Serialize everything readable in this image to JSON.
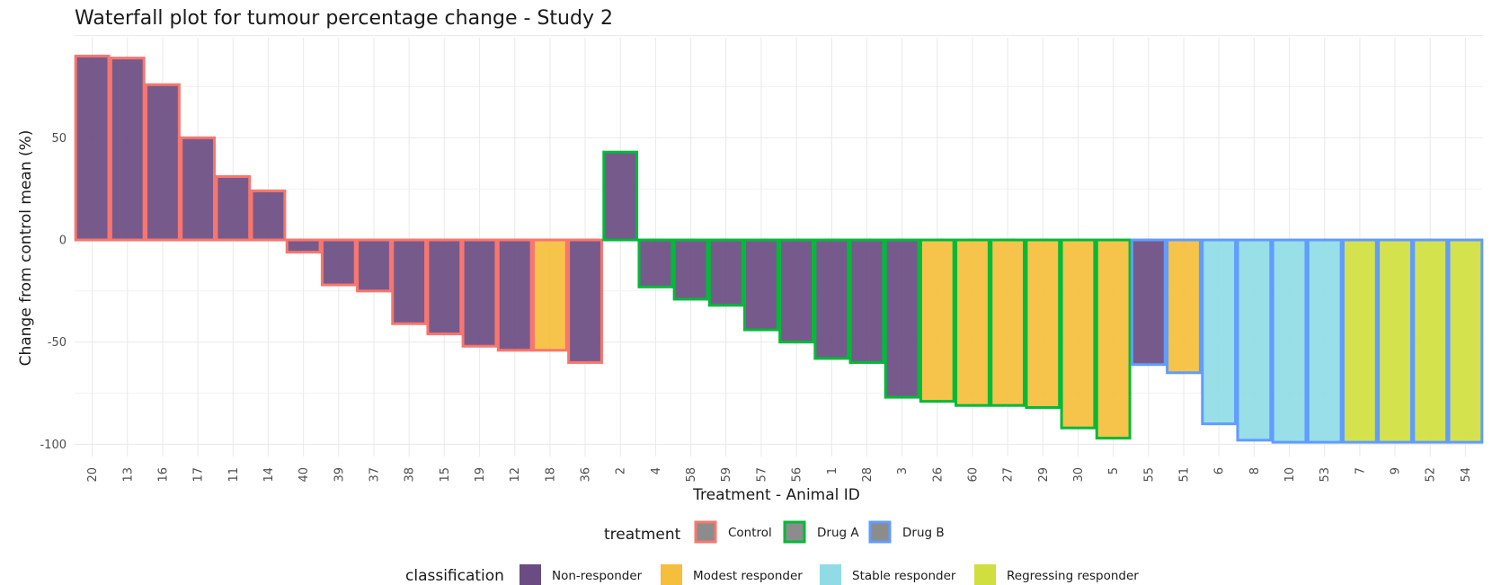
{
  "chart_data": {
    "type": "bar",
    "title": "Waterfall plot for tumour percentage change - Study 2",
    "xlabel": "Treatment - Animal ID",
    "ylabel": "Change from control mean (%)",
    "ylim": [
      -110,
      100
    ],
    "yticks": [
      50,
      0,
      -50,
      -100
    ],
    "grid": "on",
    "legend_placement": "bottom",
    "categories": [
      "20",
      "13",
      "16",
      "17",
      "11",
      "14",
      "40",
      "39",
      "37",
      "38",
      "15",
      "19",
      "12",
      "18",
      "36",
      "2",
      "4",
      "58",
      "59",
      "57",
      "56",
      "1",
      "28",
      "3",
      "26",
      "60",
      "27",
      "29",
      "30",
      "5",
      "55",
      "51",
      "6",
      "8",
      "10",
      "53",
      "7",
      "9",
      "52",
      "54"
    ],
    "values": [
      90,
      89,
      76,
      50,
      31,
      24,
      -6,
      -22,
      -25,
      -41,
      -46,
      -52,
      -54,
      -54,
      -60,
      43,
      -23,
      -29,
      -32,
      -44,
      -50,
      -58,
      -60,
      -77,
      -79,
      -81,
      -81,
      -82,
      -92,
      -97,
      -61,
      -65,
      -90,
      -98,
      -99,
      -99,
      -99,
      -99,
      -99,
      -99
    ],
    "treatment": [
      "Control",
      "Control",
      "Control",
      "Control",
      "Control",
      "Control",
      "Control",
      "Control",
      "Control",
      "Control",
      "Control",
      "Control",
      "Control",
      "Control",
      "Control",
      "Drug A",
      "Drug A",
      "Drug A",
      "Drug A",
      "Drug A",
      "Drug A",
      "Drug A",
      "Drug A",
      "Drug A",
      "Drug A",
      "Drug A",
      "Drug A",
      "Drug A",
      "Drug A",
      "Drug A",
      "Drug B",
      "Drug B",
      "Drug B",
      "Drug B",
      "Drug B",
      "Drug B",
      "Drug B",
      "Drug B",
      "Drug B",
      "Drug B"
    ],
    "classification": [
      "Non-responder",
      "Non-responder",
      "Non-responder",
      "Non-responder",
      "Non-responder",
      "Non-responder",
      "Non-responder",
      "Non-responder",
      "Non-responder",
      "Non-responder",
      "Non-responder",
      "Non-responder",
      "Non-responder",
      "Modest responder",
      "Non-responder",
      "Non-responder",
      "Non-responder",
      "Non-responder",
      "Non-responder",
      "Non-responder",
      "Non-responder",
      "Non-responder",
      "Non-responder",
      "Non-responder",
      "Modest responder",
      "Modest responder",
      "Modest responder",
      "Modest responder",
      "Modest responder",
      "Modest responder",
      "Non-responder",
      "Modest responder",
      "Stable responder",
      "Stable responder",
      "Stable responder",
      "Stable responder",
      "Regressing responder",
      "Regressing responder",
      "Regressing responder",
      "Regressing responder"
    ],
    "legend": {
      "treatment_title": "treatment",
      "treatment": [
        {
          "name": "Control",
          "color": "#f8766d"
        },
        {
          "name": "Drug A",
          "color": "#00ba38"
        },
        {
          "name": "Drug B",
          "color": "#619cff"
        }
      ],
      "classification_title": "classification",
      "classification": [
        {
          "name": "Non-responder",
          "color": "#6b4c82"
        },
        {
          "name": "Modest responder",
          "color": "#f5be3c"
        },
        {
          "name": "Stable responder",
          "color": "#8fdce6"
        },
        {
          "name": "Regressing responder",
          "color": "#d0df3e"
        }
      ]
    }
  }
}
